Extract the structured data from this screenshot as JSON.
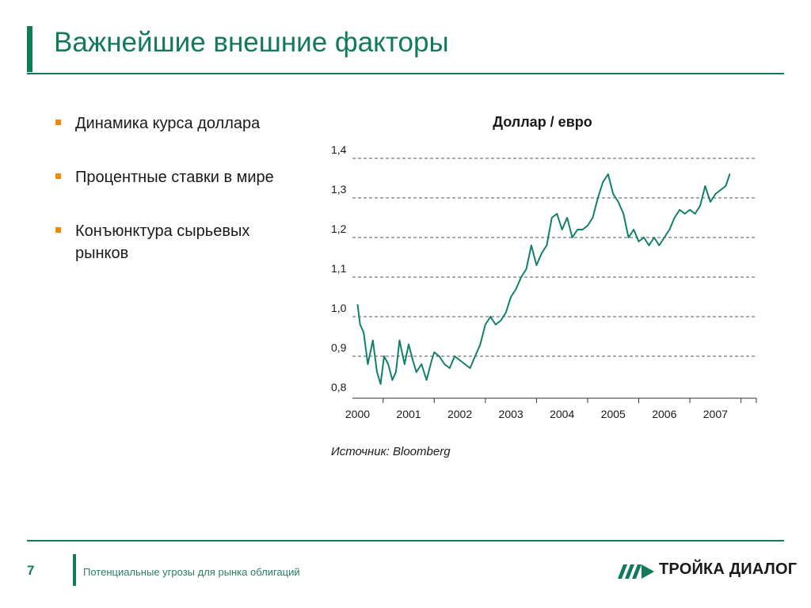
{
  "header": {
    "title": "Важнейшие внешние факторы"
  },
  "bullets": [
    "Динамика курса доллара",
    "Процентные ставки в мире",
    "Конъюнктура сырьевых рынков"
  ],
  "chart_title": "Доллар / евро",
  "source": "Источник: Bloomberg",
  "footer": {
    "page_number": "7",
    "text": "Потенциальные угрозы для рынка облигаций",
    "logo_text": "ТРОЙКА ДИАЛОГ"
  },
  "colors": {
    "brand_green": "#117a5b",
    "bullet_orange": "#f08a00",
    "series_line": "#11806a"
  },
  "chart_data": {
    "type": "line",
    "title": "Доллар / евро",
    "xlabel": "",
    "ylabel": "",
    "xlim": [
      1999.9,
      2007.8
    ],
    "ylim": [
      0.8,
      1.4
    ],
    "yticks": [
      0.8,
      0.9,
      1.0,
      1.1,
      1.2,
      1.3,
      1.4
    ],
    "ytick_labels": [
      "0,8",
      "0,9",
      "1,0",
      "1,1",
      "1,2",
      "1,3",
      "1,4"
    ],
    "xticks": [
      2000,
      2001,
      2002,
      2003,
      2004,
      2005,
      2006,
      2007
    ],
    "xtick_labels": [
      "2000",
      "2001",
      "2002",
      "2003",
      "2004",
      "2005",
      "2006",
      "2007"
    ],
    "grid": "horizontal-dashed",
    "series": [
      {
        "x": [
          2000.0,
          2000.05,
          2000.12,
          2000.2,
          2000.3,
          2000.38,
          2000.45,
          2000.52,
          2000.6,
          2000.68,
          2000.75,
          2000.82,
          2000.92,
          2001.0,
          2001.08,
          2001.15,
          2001.25,
          2001.35,
          2001.45,
          2001.5,
          2001.6,
          2001.7,
          2001.8,
          2001.9,
          2002.0,
          2002.1,
          2002.2,
          2002.3,
          2002.4,
          2002.5,
          2002.6,
          2002.7,
          2002.8,
          2002.9,
          2003.0,
          2003.1,
          2003.2,
          2003.3,
          2003.4,
          2003.5,
          2003.6,
          2003.7,
          2003.8,
          2003.9,
          2004.0,
          2004.1,
          2004.2,
          2004.3,
          2004.4,
          2004.5,
          2004.6,
          2004.7,
          2004.8,
          2004.9,
          2005.0,
          2005.1,
          2005.2,
          2005.3,
          2005.4,
          2005.5,
          2005.6,
          2005.7,
          2005.8,
          2005.9,
          2006.0,
          2006.1,
          2006.2,
          2006.3,
          2006.4,
          2006.5,
          2006.6,
          2006.7,
          2006.8,
          2006.9,
          2007.0,
          2007.1,
          2007.2,
          2007.28
        ],
        "y": [
          1.03,
          0.98,
          0.96,
          0.88,
          0.94,
          0.86,
          0.83,
          0.9,
          0.88,
          0.84,
          0.86,
          0.94,
          0.88,
          0.93,
          0.89,
          0.86,
          0.88,
          0.84,
          0.89,
          0.91,
          0.9,
          0.88,
          0.87,
          0.9,
          0.89,
          0.88,
          0.87,
          0.9,
          0.93,
          0.98,
          1.0,
          0.98,
          0.99,
          1.01,
          1.05,
          1.07,
          1.1,
          1.12,
          1.18,
          1.13,
          1.16,
          1.18,
          1.25,
          1.26,
          1.22,
          1.25,
          1.2,
          1.22,
          1.22,
          1.23,
          1.25,
          1.3,
          1.34,
          1.36,
          1.31,
          1.29,
          1.26,
          1.2,
          1.22,
          1.19,
          1.2,
          1.18,
          1.2,
          1.18,
          1.2,
          1.22,
          1.25,
          1.27,
          1.26,
          1.27,
          1.26,
          1.28,
          1.33,
          1.29,
          1.31,
          1.32,
          1.33,
          1.36
        ]
      }
    ]
  }
}
